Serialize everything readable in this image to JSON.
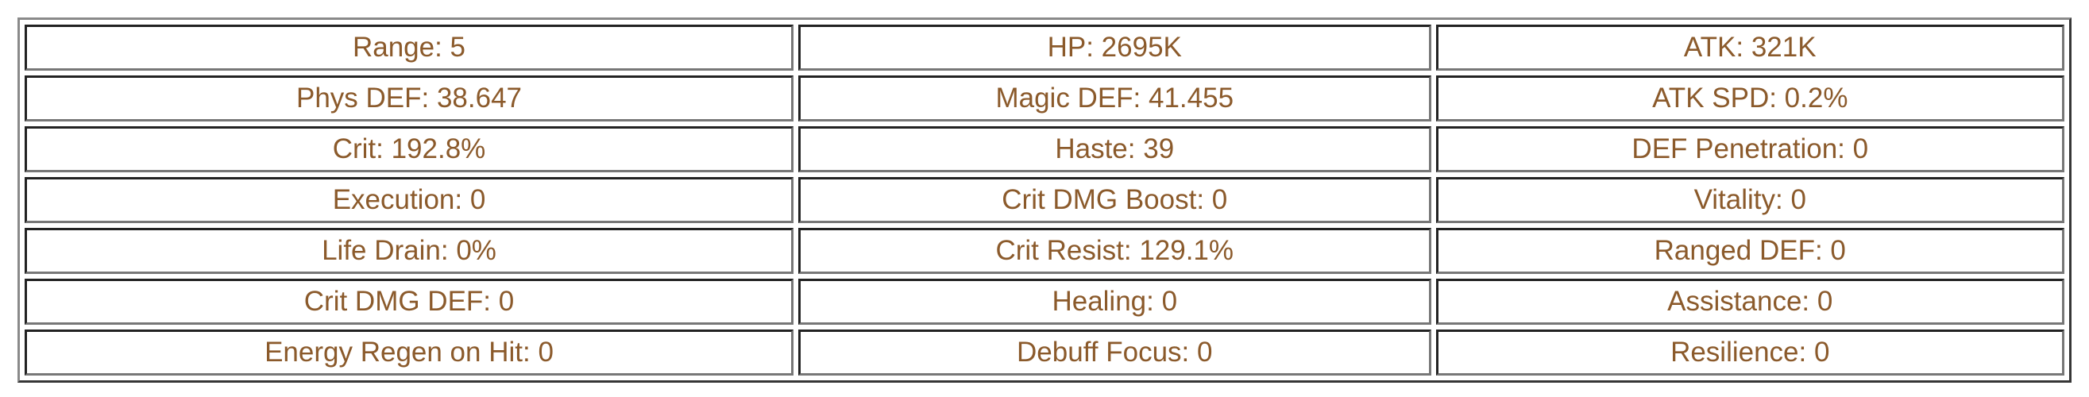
{
  "text_color": "#8b5a2b",
  "stats": [
    [
      "Range: 5",
      "HP: 2695K",
      "ATK: 321K"
    ],
    [
      "Phys DEF: 38.647",
      "Magic DEF: 41.455",
      "ATK SPD: 0.2%"
    ],
    [
      "Crit: 192.8%",
      "Haste: 39",
      "DEF Penetration: 0"
    ],
    [
      "Execution: 0",
      "Crit DMG Boost: 0",
      "Vitality: 0"
    ],
    [
      "Life Drain: 0%",
      "Crit Resist: 129.1%",
      "Ranged DEF: 0"
    ],
    [
      "Crit DMG DEF: 0",
      "Healing: 0",
      "Assistance: 0"
    ],
    [
      "Energy Regen on Hit: 0",
      "Debuff Focus: 0",
      "Resilience: 0"
    ]
  ]
}
